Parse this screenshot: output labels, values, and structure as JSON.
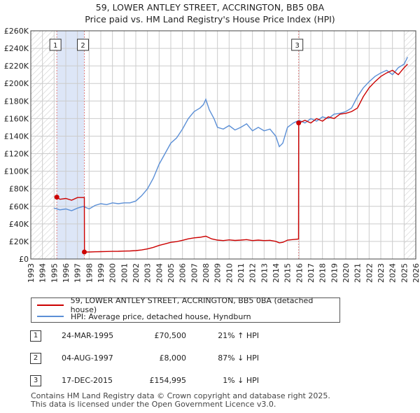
{
  "title_line1": "59, LOWER ANTLEY STREET, ACCRINGTON, BB5 0BA",
  "title_line2": "Price paid vs. HM Land Registry's House Price Index (HPI)",
  "colors": {
    "property": "#cc0000",
    "hpi": "#5b8fd6",
    "shade": "#dde6f7",
    "grid": "#cccccc",
    "marker_vline": "#e08080"
  },
  "chart_data": {
    "type": "line",
    "x_range": [
      1993.0,
      2026.0
    ],
    "ylim": [
      0,
      260000
    ],
    "y_ticks": [
      0,
      20000,
      40000,
      60000,
      80000,
      100000,
      120000,
      140000,
      160000,
      180000,
      200000,
      220000,
      240000,
      260000
    ],
    "y_tick_labels": [
      "£0",
      "£20K",
      "£40K",
      "£60K",
      "£80K",
      "£100K",
      "£120K",
      "£140K",
      "£160K",
      "£180K",
      "£200K",
      "£220K",
      "£240K",
      "£260K"
    ],
    "x_ticks": [
      1993,
      1994,
      1995,
      1996,
      1997,
      1998,
      1999,
      2000,
      2001,
      2002,
      2003,
      2004,
      2005,
      2006,
      2007,
      2008,
      2009,
      2010,
      2011,
      2012,
      2013,
      2014,
      2015,
      2016,
      2017,
      2018,
      2019,
      2020,
      2021,
      2022,
      2023,
      2024,
      2025,
      2026
    ],
    "x_tick_labels": [
      "1993",
      "1994",
      "1995",
      "1996",
      "1997",
      "1998",
      "1999",
      "2000",
      "2001",
      "2002",
      "2003",
      "2004",
      "2005",
      "2006",
      "2007",
      "2008",
      "2009",
      "2010",
      "2011",
      "2012",
      "2013",
      "2014",
      "2015",
      "2016",
      "2017",
      "2018",
      "2019",
      "2020",
      "2021",
      "2022",
      "2023",
      "2024",
      "2025",
      "2026"
    ],
    "shaded_region": [
      1995.23,
      1997.59
    ],
    "hatched_before": 1995.0,
    "hatched_after": 2025.0,
    "grid": true,
    "series": [
      {
        "name": "HPI: Average price, detached house, Hyndburn",
        "x": [
          1995.0,
          1995.5,
          1996.0,
          1996.5,
          1997.0,
          1997.5,
          1998.0,
          1998.5,
          1999.0,
          1999.5,
          2000.0,
          2000.5,
          2001.0,
          2001.5,
          2002.0,
          2002.5,
          2003.0,
          2003.5,
          2004.0,
          2004.5,
          2005.0,
          2005.5,
          2006.0,
          2006.5,
          2007.0,
          2007.5,
          2007.8,
          2008.0,
          2008.3,
          2008.7,
          2009.0,
          2009.5,
          2010.0,
          2010.5,
          2011.0,
          2011.5,
          2012.0,
          2012.5,
          2013.0,
          2013.5,
          2014.0,
          2014.3,
          2014.6,
          2015.0,
          2015.5,
          2016.0,
          2016.5,
          2017.0,
          2017.5,
          2018.0,
          2018.5,
          2019.0,
          2019.5,
          2020.0,
          2020.5,
          2021.0,
          2021.5,
          2022.0,
          2022.5,
          2023.0,
          2023.5,
          2024.0,
          2024.5,
          2025.0,
          2025.3
        ],
        "values": [
          58000,
          56000,
          57000,
          55000,
          58000,
          60000,
          57000,
          61000,
          63000,
          62000,
          64000,
          63000,
          64000,
          64000,
          66000,
          72000,
          80000,
          92000,
          108000,
          120000,
          132000,
          138000,
          148000,
          160000,
          168000,
          172000,
          176000,
          182000,
          170000,
          160000,
          150000,
          148000,
          152000,
          147000,
          150000,
          154000,
          146000,
          150000,
          146000,
          148000,
          140000,
          128000,
          132000,
          150000,
          155000,
          158000,
          155000,
          160000,
          157000,
          162000,
          160000,
          165000,
          166000,
          168000,
          172000,
          185000,
          195000,
          202000,
          208000,
          212000,
          215000,
          210000,
          218000,
          222000,
          230000
        ]
      },
      {
        "name": "59, LOWER ANTLEY STREET, ACCRINGTON, BB5 0BA (detached house)",
        "x": [
          1995.23,
          1995.5,
          1996.0,
          1996.5,
          1997.0,
          1997.4,
          1997.59,
          1997.6,
          1998.0,
          1998.5,
          1999.0,
          1999.5,
          2000.0,
          2000.5,
          2001.0,
          2001.5,
          2002.0,
          2002.5,
          2003.0,
          2003.5,
          2004.0,
          2004.5,
          2005.0,
          2005.5,
          2006.0,
          2006.5,
          2007.0,
          2007.5,
          2008.0,
          2008.5,
          2009.0,
          2009.5,
          2010.0,
          2010.5,
          2011.0,
          2011.5,
          2012.0,
          2012.5,
          2013.0,
          2013.5,
          2014.0,
          2014.3,
          2014.6,
          2015.0,
          2015.5,
          2015.95,
          2015.96,
          2016.5,
          2017.0,
          2017.5,
          2018.0,
          2018.5,
          2019.0,
          2019.5,
          2020.0,
          2020.5,
          2021.0,
          2021.5,
          2022.0,
          2022.5,
          2023.0,
          2023.5,
          2024.0,
          2024.5,
          2025.0,
          2025.3
        ],
        "values": [
          70500,
          68000,
          69000,
          67000,
          70000,
          70000,
          70000,
          8000,
          8000,
          8200,
          8400,
          8500,
          8700,
          8800,
          9000,
          9200,
          9600,
          10300,
          11500,
          13200,
          15500,
          17200,
          19000,
          19800,
          21300,
          23000,
          24100,
          24700,
          26000,
          23000,
          21500,
          21000,
          21800,
          21100,
          21500,
          22100,
          21000,
          21500,
          21000,
          21300,
          20100,
          18400,
          19000,
          21500,
          22200,
          22700,
          154995,
          158000,
          155000,
          160000,
          157000,
          162000,
          160000,
          165000,
          166000,
          168000,
          172000,
          185000,
          195000,
          202000,
          208000,
          212000,
          215000,
          210000,
          218000,
          222000
        ]
      }
    ],
    "sale_markers": [
      {
        "label": "1",
        "x": 1995.23,
        "value": 70500
      },
      {
        "label": "2",
        "x": 1997.59,
        "value": 8000
      },
      {
        "label": "3",
        "x": 2015.96,
        "value": 154995
      }
    ]
  },
  "legend": {
    "property_label": "59, LOWER ANTLEY STREET, ACCRINGTON, BB5 0BA (detached house)",
    "hpi_label": "HPI: Average price, detached house, Hyndburn"
  },
  "transactions": [
    {
      "num": "1",
      "date": "24-MAR-1995",
      "price": "£70,500",
      "hpi": "21% ↑ HPI"
    },
    {
      "num": "2",
      "date": "04-AUG-1997",
      "price": "£8,000",
      "hpi": "87% ↓ HPI"
    },
    {
      "num": "3",
      "date": "17-DEC-2015",
      "price": "£154,995",
      "hpi": "1% ↓ HPI"
    }
  ],
  "footer_line1": "Contains HM Land Registry data © Crown copyright and database right 2025.",
  "footer_line2": "This data is licensed under the Open Government Licence v3.0."
}
